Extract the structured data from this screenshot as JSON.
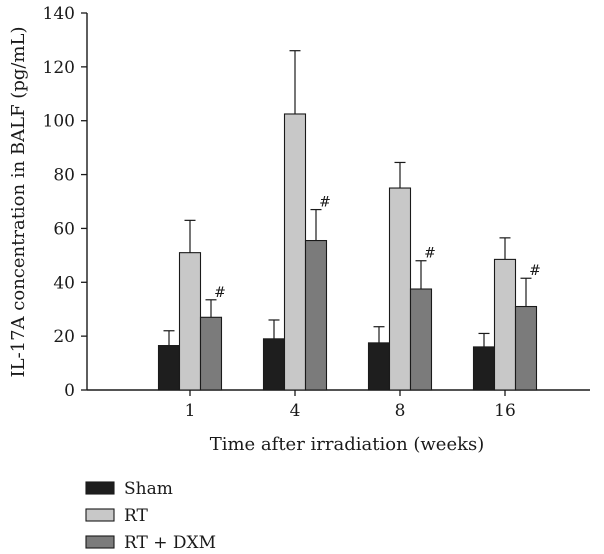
{
  "chart_data": {
    "type": "bar",
    "title": "",
    "xlabel": "Time after irradiation (weeks)",
    "ylabel": "IL-17A concentration in BALF (pg/mL)",
    "categories": [
      "1",
      "4",
      "8",
      "16"
    ],
    "ylim": [
      0,
      140
    ],
    "yticks": [
      "0",
      "20",
      "40",
      "60",
      "80",
      "100",
      "120",
      "140"
    ],
    "grid": false,
    "legend_position": "bottom-left",
    "series": [
      {
        "name": "Sham",
        "color": "#1e1e1e",
        "values": [
          16.5,
          19,
          17.5,
          16
        ],
        "errors": [
          5.5,
          7,
          6,
          5
        ]
      },
      {
        "name": "RT",
        "color": "#c8c8c8",
        "values": [
          51,
          102.5,
          75,
          48.5
        ],
        "errors": [
          12,
          23.5,
          9.5,
          8
        ]
      },
      {
        "name": "RT + DXM",
        "color": "#7b7b7b",
        "values": [
          27,
          55.5,
          37.5,
          31
        ],
        "errors": [
          6.5,
          11.5,
          10.5,
          10.5
        ]
      }
    ],
    "annotations": [
      {
        "series": "RT + DXM",
        "category": "1",
        "text": "#"
      },
      {
        "series": "RT + DXM",
        "category": "4",
        "text": "#"
      },
      {
        "series": "RT + DXM",
        "category": "8",
        "text": "#"
      },
      {
        "series": "RT + DXM",
        "category": "16",
        "text": "#"
      }
    ]
  }
}
